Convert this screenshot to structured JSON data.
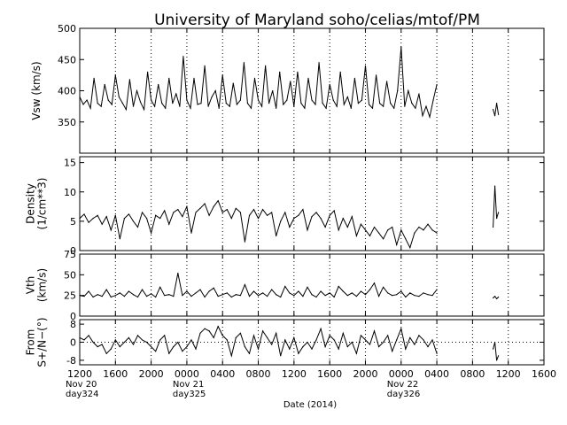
{
  "chart_data": {
    "type": "line",
    "title": "University of Maryland  soho/celias/mtof/PM",
    "xlabel": "Date (2014)",
    "x_tick_labels": [
      "1200",
      "1600",
      "2000",
      "0000",
      "0400",
      "0800",
      "1200",
      "1600",
      "2000",
      "0000",
      "0400",
      "0800",
      "1200",
      "1600"
    ],
    "x_tick_hours_since_nov20_1200": [
      0,
      4,
      8,
      12,
      16,
      20,
      24,
      28,
      32,
      36,
      40,
      44,
      48,
      52
    ],
    "x_range_hours": [
      0,
      52
    ],
    "date_labels": [
      {
        "at_hour": 0,
        "date": "Nov 20",
        "doy": "day324"
      },
      {
        "at_hour": 12,
        "date": "Nov 21",
        "doy": "day325"
      },
      {
        "at_hour": 36,
        "date": "Nov 22",
        "doy": "day326"
      }
    ],
    "vertical_grid": "dotted, every 4 hours",
    "data_gaps_hours": [
      [
        40.1,
        46.3
      ]
    ],
    "panels": [
      {
        "name": "vsw",
        "ylabel_lines": [
          "Vsw (km/s)"
        ],
        "ylim": [
          300,
          500
        ],
        "yticks": [
          350,
          400,
          450,
          500
        ],
        "ytick_labels": [
          "350",
          "400",
          "450",
          "500"
        ],
        "series_x": [
          0,
          0.4,
          0.8,
          1.2,
          1.6,
          2.0,
          2.4,
          2.8,
          3.2,
          3.6,
          4.0,
          4.4,
          4.8,
          5.2,
          5.6,
          6.0,
          6.4,
          6.8,
          7.2,
          7.6,
          8.0,
          8.4,
          8.8,
          9.2,
          9.6,
          10.0,
          10.4,
          10.8,
          11.2,
          11.6,
          12.0,
          12.4,
          12.8,
          13.2,
          13.6,
          14.0,
          14.4,
          14.8,
          15.2,
          15.6,
          16.0,
          16.4,
          16.8,
          17.2,
          17.6,
          18.0,
          18.4,
          18.8,
          19.2,
          19.6,
          20.0,
          20.4,
          20.8,
          21.2,
          21.6,
          22.0,
          22.4,
          22.8,
          23.2,
          23.6,
          24.0,
          24.4,
          24.8,
          25.2,
          25.6,
          26.0,
          26.4,
          26.8,
          27.2,
          27.6,
          28.0,
          28.4,
          28.8,
          29.2,
          29.6,
          30.0,
          30.4,
          30.8,
          31.2,
          31.6,
          32.0,
          32.4,
          32.8,
          33.2,
          33.6,
          34.0,
          34.4,
          34.8,
          35.2,
          35.6,
          36.0,
          36.4,
          36.8,
          37.2,
          37.6,
          38.0,
          38.4,
          38.8,
          39.2,
          39.6,
          40.0,
          null,
          46.3,
          46.5,
          46.7,
          46.9
        ],
        "series_y": [
          390,
          378,
          385,
          372,
          420,
          380,
          375,
          410,
          385,
          378,
          425,
          390,
          380,
          370,
          418,
          375,
          400,
          382,
          370,
          430,
          385,
          375,
          410,
          380,
          372,
          420,
          380,
          395,
          375,
          455,
          385,
          372,
          420,
          378,
          380,
          440,
          375,
          390,
          400,
          372,
          425,
          380,
          375,
          412,
          378,
          385,
          445,
          380,
          372,
          420,
          385,
          375,
          440,
          380,
          400,
          372,
          430,
          378,
          385,
          415,
          375,
          430,
          380,
          372,
          420,
          385,
          378,
          445,
          380,
          372,
          410,
          385,
          375,
          430,
          378,
          390,
          372,
          420,
          380,
          385,
          440,
          378,
          372,
          425,
          380,
          375,
          415,
          380,
          372,
          400,
          470,
          375,
          400,
          380,
          372,
          395,
          360,
          375,
          358,
          385,
          410,
          null,
          370,
          360,
          380,
          362
        ]
      },
      {
        "name": "density",
        "ylabel_lines": [
          "Density",
          "(1/cm**3)"
        ],
        "ylim": [
          0,
          16
        ],
        "yticks": [
          0,
          5,
          10,
          15
        ],
        "ytick_labels": [
          "0",
          "5",
          "10",
          "15"
        ],
        "series_x": [
          0,
          0.5,
          1.0,
          1.5,
          2.0,
          2.5,
          3.0,
          3.5,
          4.0,
          4.5,
          5.0,
          5.5,
          6.0,
          6.5,
          7.0,
          7.5,
          8.0,
          8.5,
          9.0,
          9.5,
          10.0,
          10.5,
          11.0,
          11.5,
          12.0,
          12.5,
          13.0,
          13.5,
          14.0,
          14.5,
          15.0,
          15.5,
          16.0,
          16.5,
          17.0,
          17.5,
          18.0,
          18.5,
          19.0,
          19.5,
          20.0,
          20.5,
          21.0,
          21.5,
          22.0,
          22.5,
          23.0,
          23.5,
          24.0,
          24.5,
          25.0,
          25.5,
          26.0,
          26.5,
          27.0,
          27.5,
          28.0,
          28.5,
          29.0,
          29.5,
          30.0,
          30.5,
          31.0,
          31.5,
          32.0,
          32.5,
          33.0,
          33.5,
          34.0,
          34.5,
          35.0,
          35.5,
          36.0,
          36.5,
          37.0,
          37.5,
          38.0,
          38.5,
          39.0,
          39.5,
          40.0,
          null,
          46.3,
          46.5,
          46.7,
          46.9
        ],
        "series_y": [
          5.5,
          6.2,
          4.8,
          5.5,
          6.0,
          4.5,
          5.8,
          3.5,
          6.0,
          2.0,
          5.5,
          6.2,
          5.0,
          4.0,
          6.5,
          5.5,
          3.0,
          6.0,
          5.5,
          6.8,
          4.5,
          6.5,
          7.0,
          5.8,
          7.5,
          3.0,
          6.5,
          7.2,
          8.0,
          6.0,
          7.5,
          8.5,
          6.5,
          7.0,
          5.5,
          7.2,
          6.5,
          1.5,
          6.0,
          7.0,
          5.5,
          7.0,
          6.0,
          6.5,
          2.5,
          5.0,
          6.5,
          4.0,
          5.5,
          6.0,
          7.0,
          3.5,
          5.8,
          6.5,
          5.5,
          4.0,
          6.0,
          6.8,
          3.5,
          5.5,
          4.0,
          5.8,
          2.5,
          4.5,
          3.5,
          2.5,
          4.0,
          3.0,
          2.0,
          3.5,
          4.0,
          1.0,
          3.5,
          2.0,
          0.5,
          3.0,
          4.0,
          3.5,
          4.5,
          3.5,
          3.0,
          null,
          4.0,
          11.0,
          5.5,
          6.5
        ]
      },
      {
        "name": "vth",
        "ylabel_lines": [
          "Vth",
          "(km/s)"
        ],
        "ylim": [
          0,
          75
        ],
        "yticks": [
          0,
          25,
          50,
          75
        ],
        "ytick_labels": [
          "0",
          "25",
          "50",
          "75"
        ],
        "series_x": [
          0,
          0.5,
          1.0,
          1.5,
          2.0,
          2.5,
          3.0,
          3.5,
          4.0,
          4.5,
          5.0,
          5.5,
          6.0,
          6.5,
          7.0,
          7.5,
          8.0,
          8.5,
          9.0,
          9.5,
          10.0,
          10.5,
          11.0,
          11.5,
          12.0,
          12.5,
          13.0,
          13.5,
          14.0,
          14.5,
          15.0,
          15.5,
          16.0,
          16.5,
          17.0,
          17.5,
          18.0,
          18.5,
          19.0,
          19.5,
          20.0,
          20.5,
          21.0,
          21.5,
          22.0,
          22.5,
          23.0,
          23.5,
          24.0,
          24.5,
          25.0,
          25.5,
          26.0,
          26.5,
          27.0,
          27.5,
          28.0,
          28.5,
          29.0,
          29.5,
          30.0,
          30.5,
          31.0,
          31.5,
          32.0,
          32.5,
          33.0,
          33.5,
          34.0,
          34.5,
          35.0,
          35.5,
          36.0,
          36.5,
          37.0,
          37.5,
          38.0,
          38.5,
          39.0,
          39.5,
          40.0,
          null,
          46.3,
          46.5,
          46.7,
          46.9
        ],
        "series_y": [
          25,
          24,
          30,
          23,
          26,
          24,
          32,
          23,
          25,
          28,
          24,
          30,
          26,
          23,
          32,
          24,
          27,
          23,
          35,
          25,
          26,
          24,
          52,
          25,
          30,
          24,
          28,
          32,
          23,
          30,
          34,
          24,
          26,
          28,
          23,
          26,
          25,
          38,
          24,
          30,
          25,
          28,
          24,
          32,
          26,
          23,
          36,
          28,
          25,
          30,
          24,
          35,
          26,
          23,
          30,
          25,
          28,
          23,
          36,
          30,
          25,
          28,
          24,
          30,
          26,
          32,
          40,
          24,
          35,
          28,
          25,
          26,
          30,
          23,
          28,
          25,
          24,
          28,
          26,
          25,
          32,
          null,
          22,
          24,
          21,
          23
        ]
      },
      {
        "name": "from",
        "ylabel_lines": [
          "From",
          "S+/N−(°)"
        ],
        "ylim": [
          -10,
          10
        ],
        "yticks": [
          -8,
          0,
          8
        ],
        "ytick_labels": [
          "-8",
          "0",
          "8"
        ],
        "zero_line": "dotted",
        "series_x": [
          0,
          0.5,
          1.0,
          1.5,
          2.0,
          2.5,
          3.0,
          3.5,
          4.0,
          4.5,
          5.0,
          5.5,
          6.0,
          6.5,
          7.0,
          7.5,
          8.0,
          8.5,
          9.0,
          9.5,
          10.0,
          10.5,
          11.0,
          11.5,
          12.0,
          12.5,
          13.0,
          13.5,
          14.0,
          14.5,
          15.0,
          15.5,
          16.0,
          16.5,
          17.0,
          17.5,
          18.0,
          18.5,
          19.0,
          19.5,
          20.0,
          20.5,
          21.0,
          21.5,
          22.0,
          22.5,
          23.0,
          23.5,
          24.0,
          24.5,
          25.0,
          25.5,
          26.0,
          26.5,
          27.0,
          27.5,
          28.0,
          28.5,
          29.0,
          29.5,
          30.0,
          30.5,
          31.0,
          31.5,
          32.0,
          32.5,
          33.0,
          33.5,
          34.0,
          34.5,
          35.0,
          35.5,
          36.0,
          36.5,
          37.0,
          37.5,
          38.0,
          38.5,
          39.0,
          39.5,
          40.0,
          null,
          46.3,
          46.5,
          46.7,
          46.9
        ],
        "series_y": [
          2,
          1,
          3,
          0,
          -2,
          -1,
          -5,
          -3,
          1,
          -2,
          0,
          2,
          -1,
          3,
          1,
          0,
          -2,
          -4,
          1,
          3,
          -5,
          -2,
          0,
          -4,
          -2,
          1,
          -3,
          4,
          6,
          5,
          2,
          7,
          3,
          1,
          -6,
          2,
          4,
          -2,
          -5,
          3,
          -3,
          5,
          2,
          -1,
          4,
          -6,
          1,
          -3,
          2,
          -5,
          -2,
          0,
          -3,
          1,
          6,
          -2,
          3,
          1,
          -3,
          4,
          -2,
          0,
          -5,
          3,
          1,
          -1,
          5,
          -2,
          0,
          3,
          -4,
          1,
          6,
          -3,
          2,
          -1,
          3,
          1,
          -2,
          1,
          -5,
          null,
          -3,
          0,
          -8,
          -6
        ]
      }
    ]
  }
}
